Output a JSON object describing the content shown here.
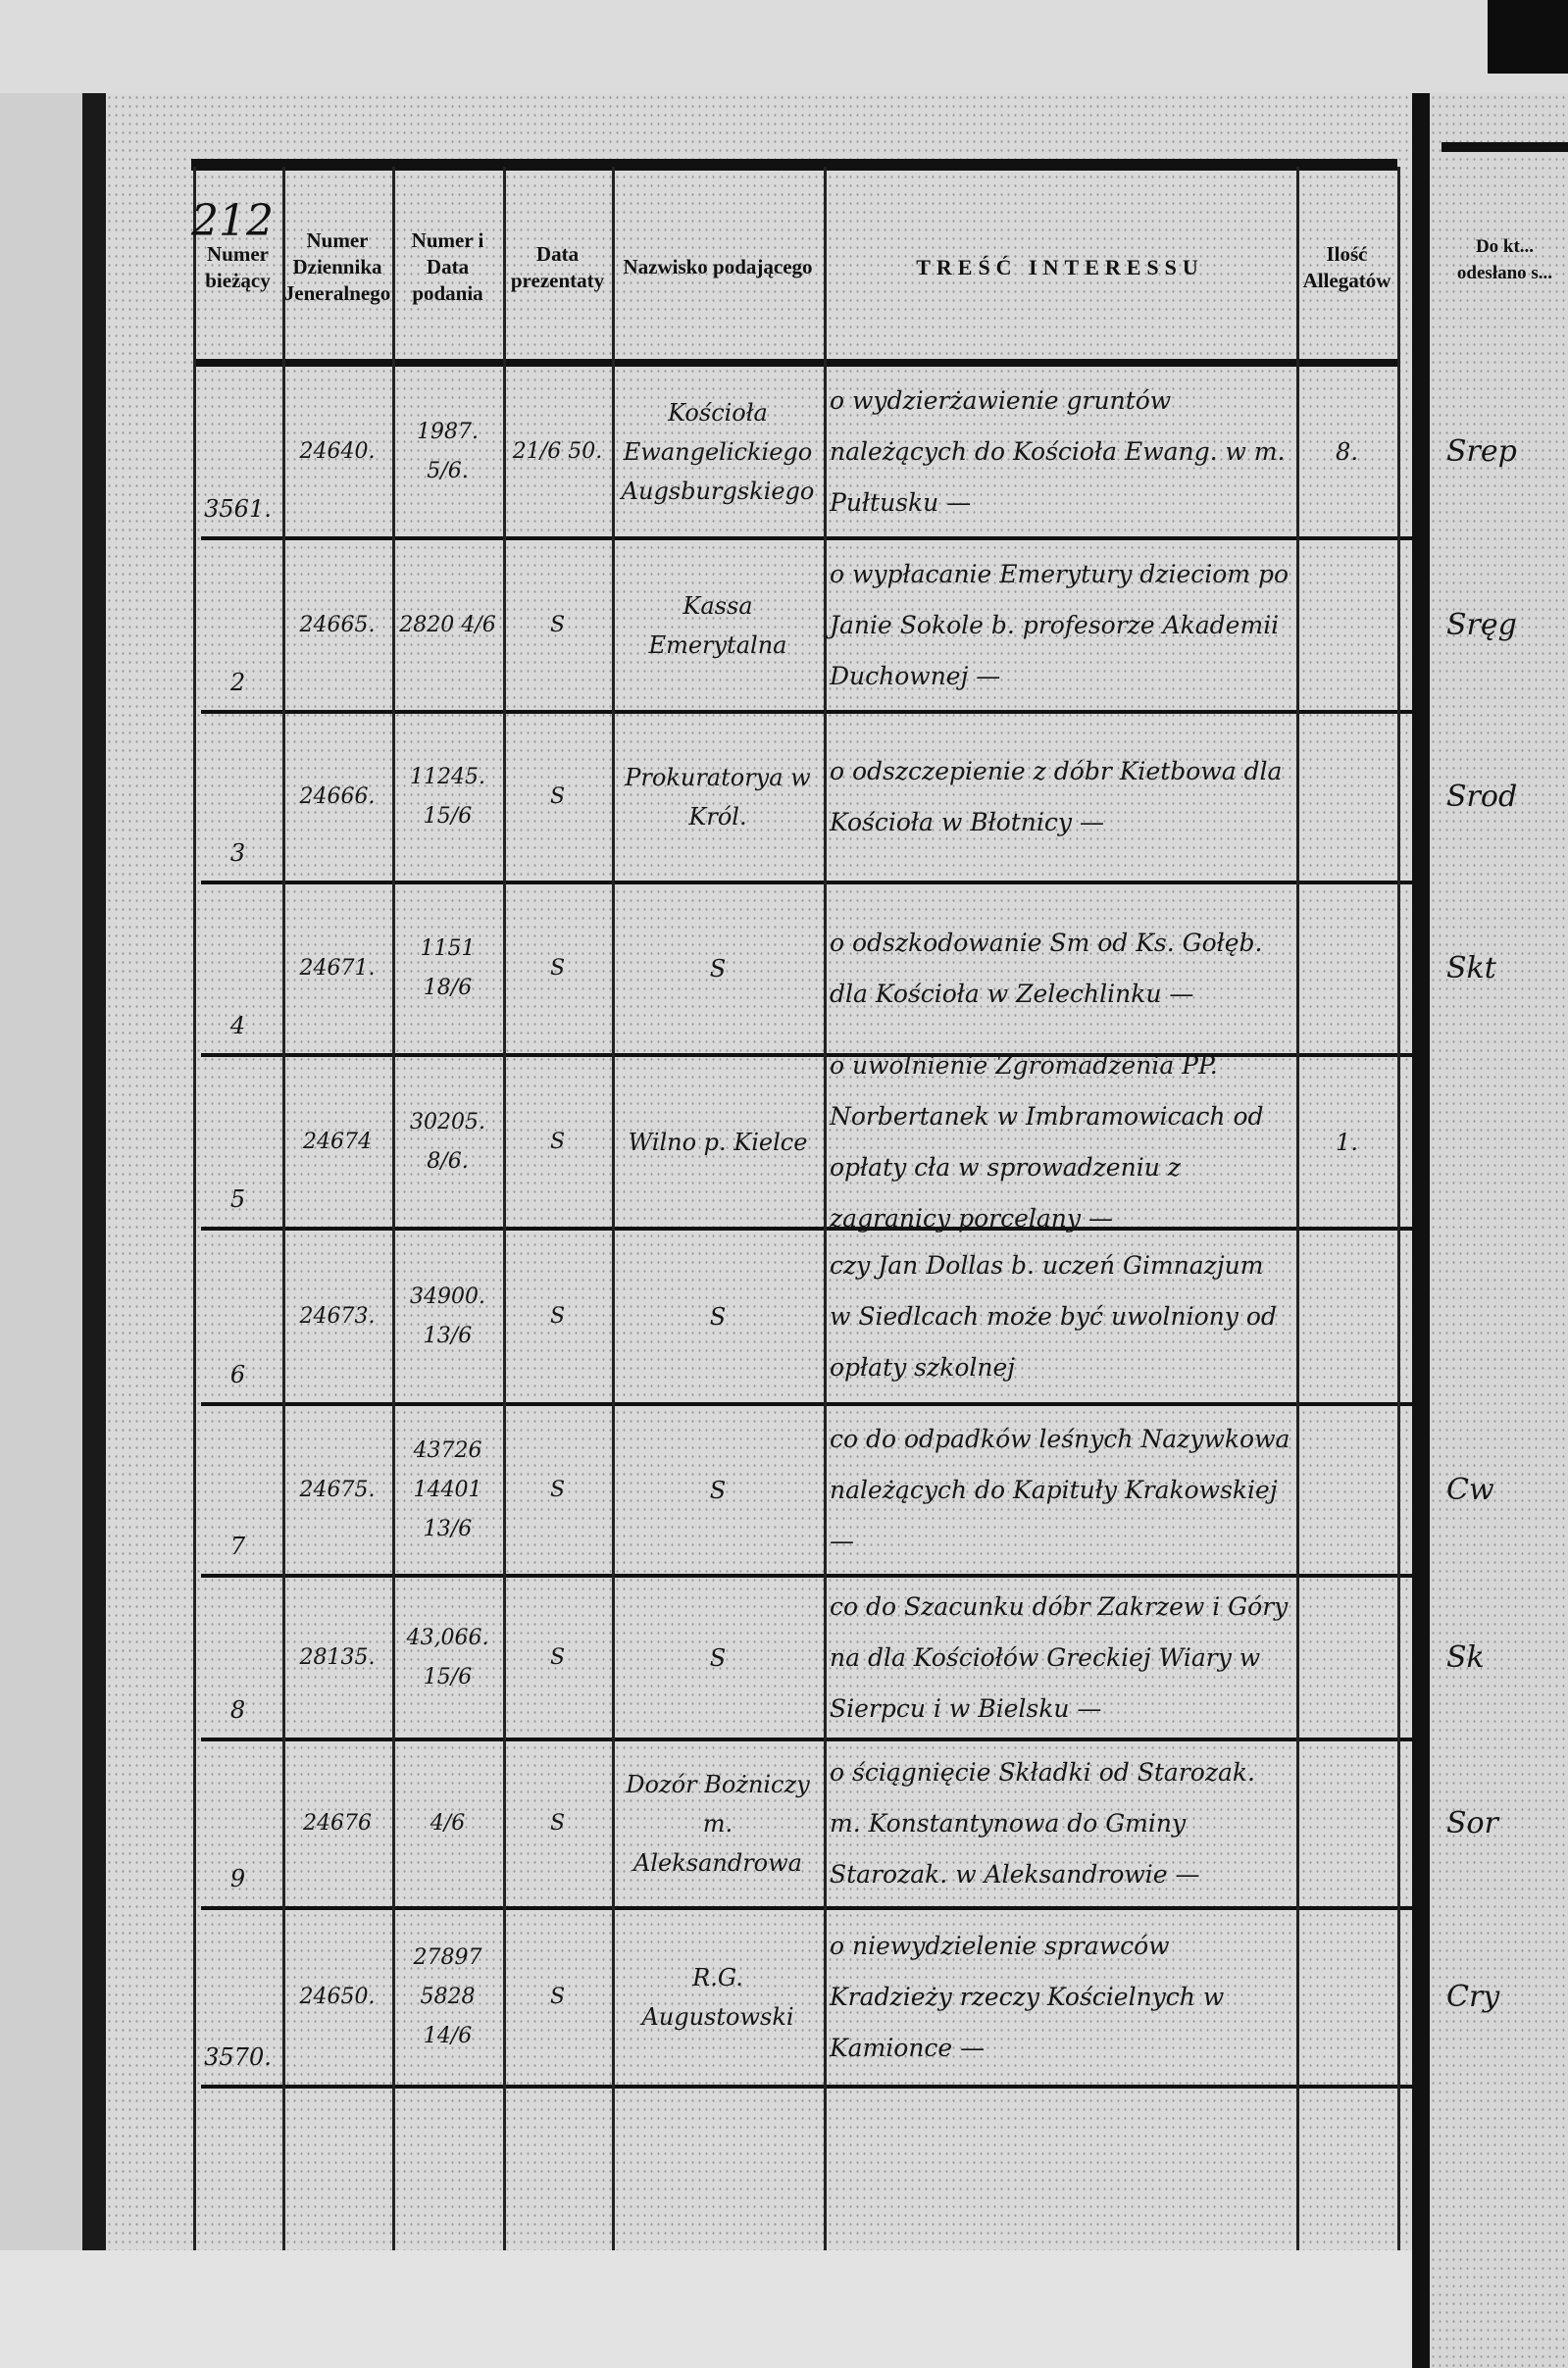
{
  "page_number": "212",
  "headers": [
    "Numer bieżący",
    "Numer Dziennika Jeneralnego",
    "Numer i Data podania",
    "Data prezentaty",
    "Nazwisko podającego",
    "TREŚĆ INTERESSU",
    "Ilość Allegatów"
  ],
  "right_page_header": "Do kt... odesłano s...",
  "rows": [
    {
      "num": "3561.",
      "journal": "24640.",
      "no_date": "1987. 5/6.",
      "presented": "21/6 50.",
      "name": "Kościoła Ewangelickiego Augsburgskiego",
      "content": "o wydzierżawienie gruntów należących do Kościoła Ewang. w m. Pułtusku —",
      "attachments": "8.",
      "right": "Srep"
    },
    {
      "num": "2",
      "journal": "24665.",
      "no_date": "2820 4/6",
      "presented": "S",
      "name": "Kassa Emerytalna",
      "content": "o wypłacanie Emerytury dzieciom po Janie Sokole b. profesorze Akademii Duchownej —",
      "attachments": "",
      "right": "Sręg"
    },
    {
      "num": "3",
      "journal": "24666.",
      "no_date": "11245. 15/6",
      "presented": "S",
      "name": "Prokuratorya w Król.",
      "content": "o odszczepienie z dóbr Kietbowa dla Kościoła w Błotnicy —",
      "attachments": "",
      "right": "Srod"
    },
    {
      "num": "4",
      "journal": "24671.",
      "no_date": "1151 18/6",
      "presented": "S",
      "name": "S",
      "content": "o odszkodowanie Sm od Ks. Gołęb. dla Kościoła w Zelechlinku —",
      "attachments": "",
      "right": "Skt"
    },
    {
      "num": "5",
      "journal": "24674",
      "no_date": "30205. 8/6.",
      "presented": "S",
      "name": "Wilno p. Kielce",
      "content": "o uwolnienie Zgromadzenia PP. Norbertanek w Imbramowicach od opłaty cła w sprowadzeniu z zagranicy porcelany —",
      "attachments": "1.",
      "right": ""
    },
    {
      "num": "6",
      "journal": "24673.",
      "no_date": "34900. 13/6",
      "presented": "S",
      "name": "S",
      "content": "czy Jan Dollas b. uczeń Gimnazjum w Siedlcach może być uwolniony od opłaty szkolnej",
      "attachments": "",
      "right": ""
    },
    {
      "num": "7",
      "journal": "24675.",
      "no_date": "43726 14401 13/6",
      "presented": "S",
      "name": "S",
      "content": "co do odpadków leśnych Nazywkowa należących do Kapituły Krakowskiej —",
      "attachments": "",
      "right": "Cw"
    },
    {
      "num": "8",
      "journal": "28135.",
      "no_date": "43,066. 15/6",
      "presented": "S",
      "name": "S",
      "content": "co do Szacunku dóbr Zakrzew i Góry na dla Kościołów Greckiej Wiary w Sierpcu i w Bielsku —",
      "attachments": "",
      "right": "Sk"
    },
    {
      "num": "9",
      "journal": "24676",
      "no_date": "4/6",
      "presented": "S",
      "name": "Dozór Bożniczy m. Aleksandrowa",
      "content": "o ściągnięcie Składki od Starozak. m. Konstantynowa do Gminy Starozak. w Aleksandrowie —",
      "attachments": "",
      "right": "Sor"
    },
    {
      "num": "3570.",
      "journal": "24650.",
      "no_date": "27897 5828 14/6",
      "presented": "S",
      "name": "R.G. Augustowski",
      "content": "o niewydzielenie sprawców Kradzieży rzeczy Kościelnych w Kamionce —",
      "attachments": "",
      "right": "Cry"
    }
  ]
}
